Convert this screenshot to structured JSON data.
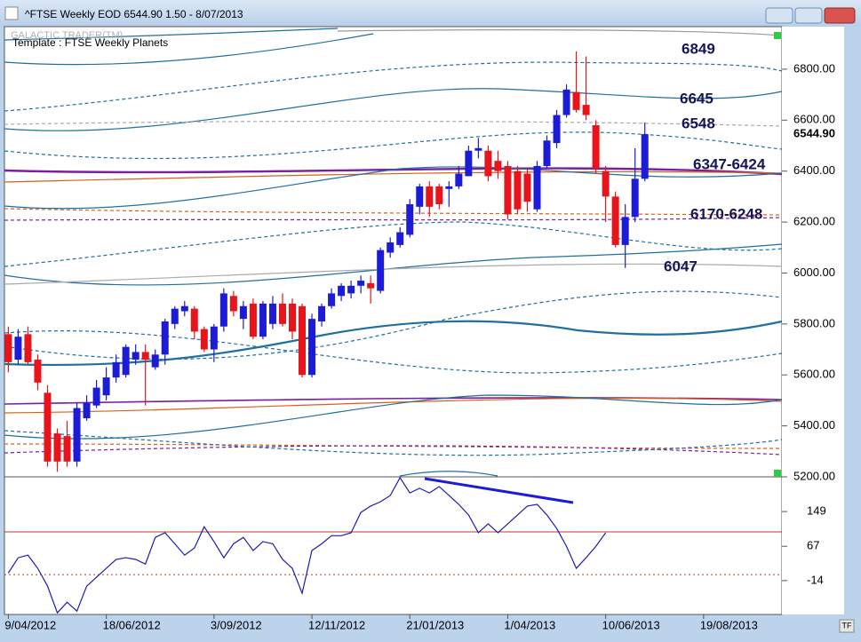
{
  "window": {
    "title": "^FTSE Weekly EOD  6544.90    1.50 - 8/07/2013",
    "watermark": "GALACTIC TRADER(TM)",
    "template": "Template : FTSE Weekly Planets",
    "tf_button": "TF"
  },
  "chart_data": [
    {
      "type": "candlestick",
      "up_color": "#1c1cd6",
      "down_color": "#e8141c",
      "open": [
        5760,
        5660,
        5760,
        5660,
        5530,
        5370,
        5360,
        5260,
        5430,
        5480,
        5520,
        5590,
        5600,
        5660,
        5690,
        5630,
        5680,
        5800,
        5850,
        5860,
        5780,
        5700,
        5790,
        5910,
        5820,
        5880,
        5750,
        5800,
        5880,
        5880,
        5870,
        5600,
        5810,
        5870,
        5910,
        5920,
        5950,
        5960,
        5930,
        6080,
        6110,
        6150,
        6260,
        6340,
        6340,
        6330,
        6340,
        6380,
        6480,
        6480,
        6440,
        6420,
        6400,
        6390,
        6250,
        6420,
        6510,
        6620,
        6710,
        6660,
        6580,
        6400,
        6300,
        6110,
        6220,
        6370
      ],
      "high": [
        5790,
        5780,
        5790,
        5680,
        5560,
        5390,
        5420,
        5490,
        5520,
        5580,
        5630,
        5680,
        5720,
        5720,
        5720,
        5700,
        5820,
        5870,
        5890,
        5870,
        5790,
        5800,
        5940,
        5930,
        5890,
        5900,
        5890,
        5910,
        5920,
        5900,
        5880,
        5840,
        5880,
        5940,
        5960,
        5970,
        5990,
        5990,
        6100,
        6140,
        6180,
        6290,
        6350,
        6360,
        6350,
        6360,
        6420,
        6500,
        6530,
        6500,
        6480,
        6440,
        6420,
        6410,
        6440,
        6540,
        6640,
        6740,
        6870,
        6850,
        6600,
        6420,
        6320,
        6270,
        6490,
        6590
      ],
      "low": [
        5610,
        5640,
        5640,
        5540,
        5240,
        5220,
        5240,
        5240,
        5420,
        5470,
        5500,
        5570,
        5590,
        5640,
        5480,
        5620,
        5640,
        5780,
        5830,
        5740,
        5690,
        5650,
        5770,
        5830,
        5780,
        5740,
        5740,
        5780,
        5790,
        5740,
        5590,
        5590,
        5790,
        5860,
        5890,
        5900,
        5920,
        5880,
        5920,
        6060,
        6100,
        6140,
        6230,
        6220,
        6250,
        6260,
        6330,
        6380,
        6450,
        6360,
        6370,
        6210,
        6230,
        6240,
        6240,
        6410,
        6490,
        6610,
        6630,
        6600,
        6390,
        6200,
        6100,
        6020,
        6200,
        6360
      ],
      "close": [
        5650,
        5750,
        5650,
        5570,
        5260,
        5260,
        5260,
        5470,
        5490,
        5550,
        5590,
        5650,
        5710,
        5690,
        5660,
        5680,
        5810,
        5860,
        5870,
        5770,
        5700,
        5790,
        5920,
        5850,
        5870,
        5750,
        5880,
        5880,
        5800,
        5770,
        5600,
        5820,
        5870,
        5920,
        5950,
        5950,
        5970,
        5940,
        6090,
        6120,
        6160,
        6270,
        6340,
        6260,
        6270,
        6340,
        6390,
        6480,
        6490,
        6380,
        6400,
        6230,
        6250,
        6280,
        6420,
        6520,
        6620,
        6720,
        6640,
        6620,
        6410,
        6300,
        6110,
        6220,
        6370,
        6544.9
      ],
      "xlim": [
        -0.4,
        79
      ],
      "xticks": [
        {
          "value": 0,
          "label": "9/04/2012"
        },
        {
          "value": 10,
          "label": "18/06/2012"
        },
        {
          "value": 21,
          "label": "3/09/2012"
        },
        {
          "value": 31,
          "label": "12/11/2012"
        },
        {
          "value": 41,
          "label": "21/01/2013"
        },
        {
          "value": 51,
          "label": "1/04/2013"
        },
        {
          "value": 61,
          "label": "10/06/2013"
        },
        {
          "value": 71,
          "label": "19/08/2013"
        }
      ],
      "ylim": [
        5200,
        6967
      ],
      "yticks": [
        {
          "value": 6800,
          "label": "6800.00"
        },
        {
          "value": 6600,
          "label": "6600.00"
        },
        {
          "value": 6400,
          "label": "6400.00"
        },
        {
          "value": 6200,
          "label": "6200.00"
        },
        {
          "value": 6000,
          "label": "6000.00"
        },
        {
          "value": 5800,
          "label": "5800.00"
        },
        {
          "value": 5600,
          "label": "5600.00"
        },
        {
          "value": 5400,
          "label": "5400.00"
        },
        {
          "value": 5200,
          "label": "5200.00"
        }
      ],
      "last_price": {
        "value": 6544.9,
        "label": "6544.90"
      },
      "annotations": [
        "6849",
        "6645",
        "6548",
        "6347-6424",
        "6170-6248",
        "6047"
      ]
    },
    {
      "type": "line",
      "color": "#1c1cb0",
      "values": [
        4,
        40,
        46,
        15,
        -27,
        -90,
        -65,
        -86,
        -27,
        -6,
        15,
        36,
        40,
        36,
        25,
        88,
        99,
        73,
        46,
        63,
        113,
        78,
        40,
        73,
        88,
        57,
        78,
        73,
        36,
        15,
        -44,
        57,
        73,
        92,
        92,
        99,
        147,
        162,
        172,
        187,
        229,
        193,
        204,
        193,
        208,
        187,
        166,
        141,
        99,
        120,
        99,
        120,
        141,
        162,
        166,
        141,
        109,
        67,
        15,
        40,
        67,
        99
      ],
      "ylim": [
        -94,
        231
      ],
      "yticks": [
        149,
        67,
        -14
      ],
      "levels": [
        {
          "value": 101,
          "color": "#c0392b",
          "dash": "none"
        },
        {
          "value": 0,
          "color": "#c0392b",
          "dash": "2 3"
        }
      ]
    }
  ]
}
